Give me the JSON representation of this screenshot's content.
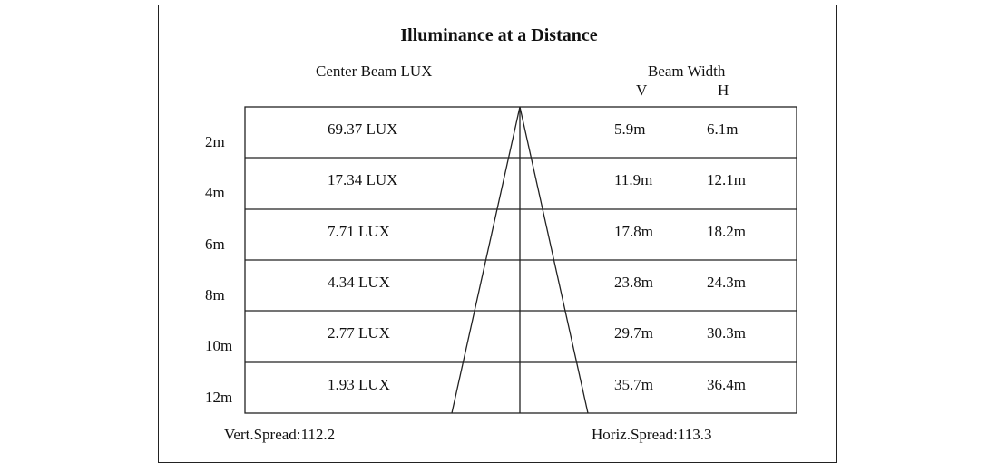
{
  "title": "Illuminance at a Distance",
  "headers": {
    "center_beam": "Center Beam LUX",
    "beam_width": "Beam Width",
    "v": "V",
    "h": "H"
  },
  "rows": [
    {
      "distance": "2m",
      "lux": "69.37 LUX",
      "v": "5.9m",
      "h": "6.1m"
    },
    {
      "distance": "4m",
      "lux": "17.34 LUX",
      "v": "11.9m",
      "h": "12.1m"
    },
    {
      "distance": "6m",
      "lux": "7.71 LUX",
      "v": "17.8m",
      "h": "18.2m"
    },
    {
      "distance": "8m",
      "lux": "4.34 LUX",
      "v": "23.8m",
      "h": "24.3m"
    },
    {
      "distance": "10m",
      "lux": "2.77 LUX",
      "v": "29.7m",
      "h": "30.3m"
    },
    {
      "distance": "12m",
      "lux": "1.93 LUX",
      "v": "35.7m",
      "h": "36.4m"
    }
  ],
  "footer": {
    "vert_spread": "Vert.Spread:112.2",
    "horiz_spread": "Horiz.Spread:113.3"
  }
}
